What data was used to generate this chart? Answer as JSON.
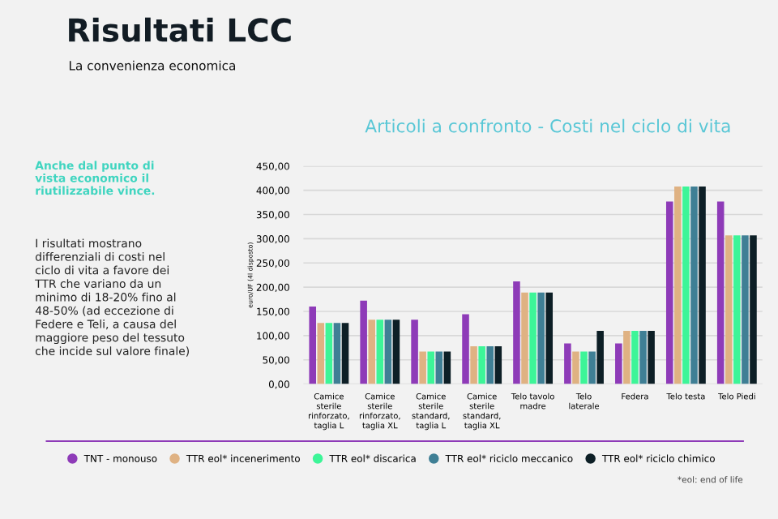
{
  "chart_data": {
    "type": "bar",
    "title": "Risultati LCC",
    "subtitle": "La convenienza economica",
    "ylabel": "euro/UF (4l disposto)",
    "categories": [
      "Camice\nsterile\nrinforzato,\ntaglia L",
      "Camice\nsterile\nrinforzato,\ntaglia XL",
      "Camice\nsterile\nstandard,\ntaglia L",
      "Camice\nsterile\nstandard,\ntaglia XL",
      "Telo tavolo\nmadre",
      "Telo\nlaterale",
      "Federa",
      "Telo testa",
      "Telo Piedi"
    ],
    "series": [
      {
        "name": "TNT - monouso",
        "color": "#8e3bb8",
        "values": [
          160,
          172,
          133,
          144,
          212,
          84,
          84,
          377,
          377
        ]
      },
      {
        "name": "TTR eol* incenerimento",
        "color": "#dfb283",
        "values": [
          126,
          133,
          67,
          78,
          189,
          67,
          110,
          408,
          307
        ]
      },
      {
        "name": "TTR eol* discarica",
        "color": "#3df598",
        "values": [
          126,
          133,
          67,
          78,
          189,
          67,
          110,
          408,
          307
        ]
      },
      {
        "name": "TTR eol* riciclo meccanico",
        "color": "#3f7f95",
        "values": [
          126,
          133,
          67,
          78,
          189,
          67,
          110,
          408,
          307
        ]
      },
      {
        "name": "TTR eol* riciclo chimico",
        "color": "#0d1f26",
        "values": [
          126,
          133,
          67,
          78,
          189,
          110,
          110,
          408,
          307
        ]
      }
    ],
    "ylim": [
      0,
      450
    ],
    "yticks": [
      {
        "value": 0,
        "label": "0,00"
      },
      {
        "value": 50,
        "label": "50,00"
      },
      {
        "value": 100,
        "label": "100,00"
      },
      {
        "value": 150,
        "label": "150,00"
      },
      {
        "value": 200,
        "label": "200,00"
      },
      {
        "value": 250,
        "label": "250,00"
      },
      {
        "value": 300,
        "label": "300,00"
      },
      {
        "value": 350,
        "label": "350,00"
      },
      {
        "value": 400,
        "label": "400,00"
      },
      {
        "value": 450,
        "label": "450,00"
      }
    ],
    "grid": "y",
    "legend": "bottom",
    "marker": "circle",
    "annotations": [
      "Articoli a confronto - Costi nel ciclo di vita",
      "Anche dal punto di\nvista economico il\nriutilizzabile vince.",
      "I risultati mostrano\ndifferenziali di costi nel\nciclo di vita a favore dei\nTTR che variano da un\nminimo di 18-20% fino al\n48-50% (ad eccezione di\nFedere e Teli, a causa del\nmaggiore peso del tessuto\nche incide sul valore finale)",
      "*eol: end of life"
    ]
  }
}
